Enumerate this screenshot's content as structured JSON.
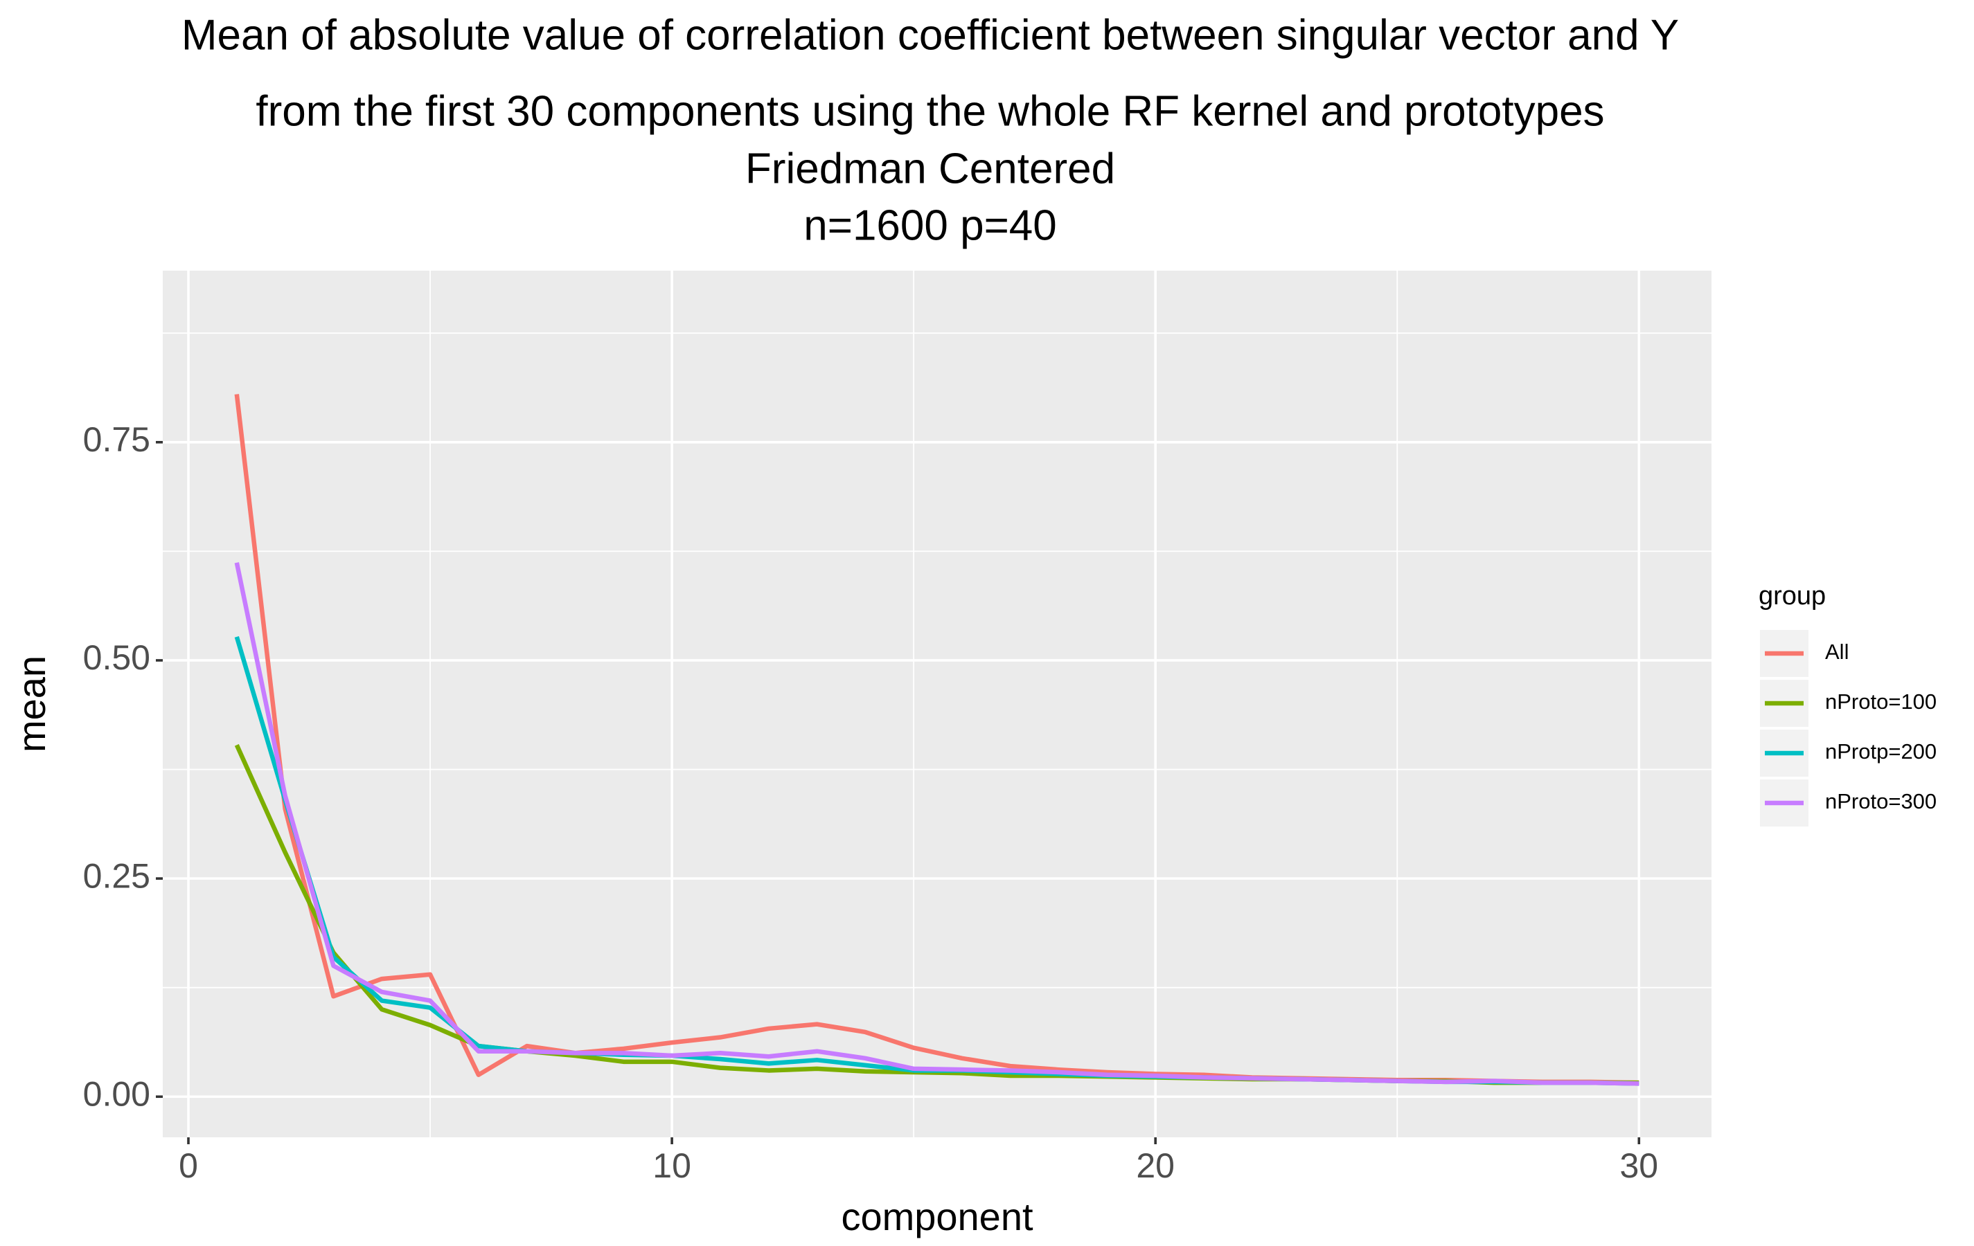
{
  "chart_data": {
    "type": "line",
    "title": [
      "Mean of absolute value of correlation coefficient between singular vector and Y",
      "from the first 30 components using the whole RF kernel and prototypes",
      "Friedman Centered",
      "n=1600 p=40"
    ],
    "x_label": "component",
    "y_label": "mean",
    "legend_title": "group",
    "legend_position": "right",
    "grid": true,
    "x": [
      1,
      2,
      3,
      4,
      5,
      6,
      7,
      8,
      9,
      10,
      11,
      12,
      13,
      14,
      15,
      16,
      17,
      18,
      19,
      20,
      21,
      22,
      23,
      24,
      25,
      26,
      27,
      28,
      29,
      30
    ],
    "series": [
      {
        "name": "All",
        "color": "#F8766D",
        "values": [
          0.805,
          0.33,
          0.115,
          0.135,
          0.14,
          0.025,
          0.058,
          0.05,
          0.055,
          0.062,
          0.068,
          0.078,
          0.083,
          0.074,
          0.056,
          0.044,
          0.035,
          0.031,
          0.028,
          0.026,
          0.025,
          0.022,
          0.021,
          0.02,
          0.019,
          0.019,
          0.018,
          0.017,
          0.017,
          0.016
        ]
      },
      {
        "name": "nProto=100",
        "color": "#7CAE00",
        "values": [
          0.403,
          0.28,
          0.165,
          0.1,
          0.082,
          0.058,
          0.052,
          0.047,
          0.04,
          0.04,
          0.033,
          0.03,
          0.032,
          0.029,
          0.028,
          0.027,
          0.024,
          0.024,
          0.023,
          0.022,
          0.021,
          0.02,
          0.02,
          0.019,
          0.018,
          0.018,
          0.016,
          0.016,
          0.016,
          0.016
        ]
      },
      {
        "name": "nProtp=200",
        "color": "#00BFC4",
        "values": [
          0.527,
          0.34,
          0.16,
          0.11,
          0.102,
          0.058,
          0.052,
          0.05,
          0.048,
          0.047,
          0.043,
          0.038,
          0.042,
          0.036,
          0.03,
          0.03,
          0.028,
          0.026,
          0.024,
          0.023,
          0.022,
          0.021,
          0.02,
          0.019,
          0.018,
          0.017,
          0.017,
          0.016,
          0.016,
          0.015
        ]
      },
      {
        "name": "nProto=300",
        "color": "#C77CFF",
        "values": [
          0.612,
          0.345,
          0.15,
          0.12,
          0.11,
          0.052,
          0.052,
          0.05,
          0.05,
          0.047,
          0.05,
          0.046,
          0.052,
          0.044,
          0.032,
          0.031,
          0.03,
          0.028,
          0.025,
          0.024,
          0.022,
          0.021,
          0.02,
          0.019,
          0.018,
          0.017,
          0.018,
          0.016,
          0.016,
          0.015
        ]
      }
    ],
    "xlim": [
      -0.53,
      31.5
    ],
    "ylim": [
      -0.0466,
      0.9466
    ],
    "xticks": [
      0,
      10,
      20,
      30
    ],
    "yticks": [
      {
        "value": 0,
        "label": "0.00"
      },
      {
        "value": 0.25,
        "label": "0.25"
      },
      {
        "value": 0.5,
        "label": "0.50"
      },
      {
        "value": 0.75,
        "label": "0.75"
      }
    ],
    "xminor": [
      5,
      15,
      25
    ],
    "yminor": [
      0.125,
      0.375,
      0.625,
      0.875
    ]
  }
}
